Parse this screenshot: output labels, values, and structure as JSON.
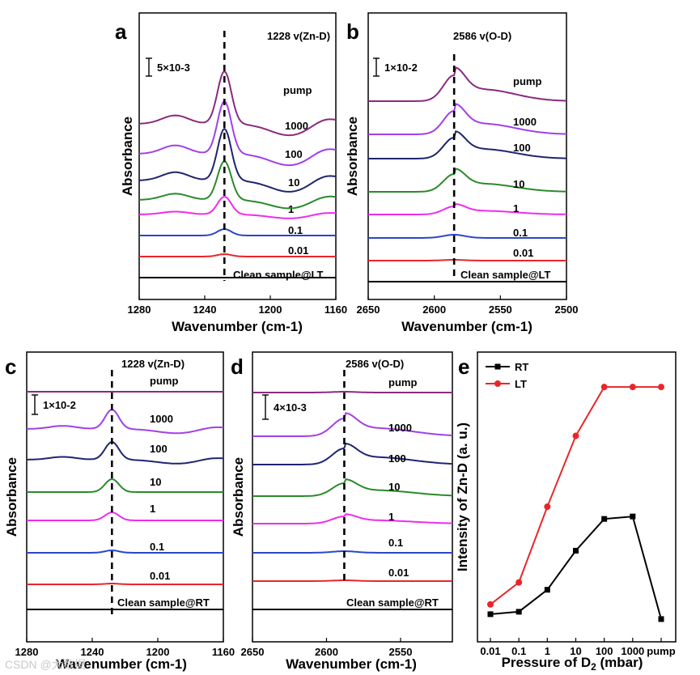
{
  "chart_data": [
    {
      "panel": "a",
      "type": "line",
      "xlabel": "Wavenumber (cm-1)",
      "ylabel": "Absorbance",
      "xlim": [
        1280,
        1160
      ],
      "xticks": [
        "1280",
        "1240",
        "1200",
        "1160"
      ],
      "peak_label": "1228 v(Zn-D)",
      "peak_x": 1228,
      "scale_label": "5×10-3",
      "series": [
        {
          "name": "Clean sample@LT",
          "color": "#000000",
          "baseline": 0,
          "amplitude": 0
        },
        {
          "name": "0.01",
          "color": "#e8262a",
          "baseline": 26,
          "amplitude": 3
        },
        {
          "name": "0.1",
          "color": "#2a46c8",
          "baseline": 52,
          "amplitude": 8
        },
        {
          "name": "1",
          "color": "#ee2cee",
          "baseline": 78,
          "amplitude": 22
        },
        {
          "name": "10",
          "color": "#2b8a2b",
          "baseline": 96,
          "amplitude": 48
        },
        {
          "name": "100",
          "color": "#1f2470",
          "baseline": 120,
          "amplitude": 64
        },
        {
          "name": "1000",
          "color": "#a040e8",
          "baseline": 153,
          "amplitude": 65
        },
        {
          "name": "pump",
          "color": "#8a2a80",
          "baseline": 190,
          "amplitude": 65
        }
      ]
    },
    {
      "panel": "b",
      "type": "line",
      "xlabel": "Wavenumber (cm-1)",
      "ylabel": "Absorbance",
      "xlim": [
        2650,
        2500
      ],
      "xticks": [
        "2650",
        "2600",
        "2550",
        "2500"
      ],
      "peak_label": "2586 v(O-D)",
      "peak_x": 2585,
      "scale_label": "1×10-2",
      "series": [
        {
          "name": "Clean sample@LT",
          "color": "#000000",
          "baseline": 0,
          "amplitude": 0
        },
        {
          "name": "0.01",
          "color": "#e8262a",
          "baseline": 26,
          "amplitude": 1
        },
        {
          "name": "0.1",
          "color": "#2a46c8",
          "baseline": 54,
          "amplitude": 4
        },
        {
          "name": "1",
          "color": "#ee2cee",
          "baseline": 83,
          "amplitude": 10
        },
        {
          "name": "10",
          "color": "#2b8a2b",
          "baseline": 111,
          "amplitude": 22
        },
        {
          "name": "100",
          "color": "#1f2470",
          "baseline": 152,
          "amplitude": 26
        },
        {
          "name": "1000",
          "color": "#a040e8",
          "baseline": 182,
          "amplitude": 29
        },
        {
          "name": "pump",
          "color": "#8a2a80",
          "baseline": 223,
          "amplitude": 32
        }
      ]
    },
    {
      "panel": "c",
      "type": "line",
      "xlabel": "Wavenumber (cm-1)",
      "ylabel": "Absorbance",
      "xlim": [
        1280,
        1160
      ],
      "xticks": [
        "1280",
        "1240",
        "1200",
        "1160"
      ],
      "peak_label": "1228 v(Zn-D)",
      "peak_x": 1228,
      "scale_label": "1×10-2",
      "series": [
        {
          "name": "Clean sample@RT",
          "color": "#000000",
          "baseline": 0,
          "amplitude": 0
        },
        {
          "name": "0.01",
          "color": "#e8262a",
          "baseline": 31,
          "amplitude": 1
        },
        {
          "name": "0.1",
          "color": "#2a46c8",
          "baseline": 70,
          "amplitude": 3
        },
        {
          "name": "1",
          "color": "#ee2cee",
          "baseline": 110,
          "amplitude": 10
        },
        {
          "name": "10",
          "color": "#2b8a2b",
          "baseline": 145,
          "amplitude": 16
        },
        {
          "name": "100",
          "color": "#1f2470",
          "baseline": 185,
          "amplitude": 22
        },
        {
          "name": "1000",
          "color": "#a040e8",
          "baseline": 223,
          "amplitude": 24
        },
        {
          "name": "pump",
          "color": "#8a2a80",
          "baseline": 269,
          "amplitude": 0
        }
      ]
    },
    {
      "panel": "d",
      "type": "line",
      "xlabel": "Wavenumber (cm-1)",
      "ylabel": "Absorbance",
      "xlim": [
        2650,
        2515
      ],
      "xticks": [
        "2650",
        "2600",
        "2550"
      ],
      "peak_label": "2586 v(O-D)",
      "peak_x": 2588,
      "scale_label": "4×10-3",
      "series": [
        {
          "name": "Clean sample@RT",
          "color": "#000000",
          "baseline": 0,
          "amplitude": 0
        },
        {
          "name": "0.01",
          "color": "#e8262a",
          "baseline": 35,
          "amplitude": 1
        },
        {
          "name": "0.1",
          "color": "#2a46c8",
          "baseline": 70,
          "amplitude": 2
        },
        {
          "name": "1",
          "color": "#ee2cee",
          "baseline": 106,
          "amplitude": 9
        },
        {
          "name": "10",
          "color": "#2b8a2b",
          "baseline": 140,
          "amplitude": 16
        },
        {
          "name": "100",
          "color": "#1f2470",
          "baseline": 179,
          "amplitude": 20
        },
        {
          "name": "1000",
          "color": "#a040e8",
          "baseline": 214,
          "amplitude": 22
        },
        {
          "name": "pump",
          "color": "#8a2a80",
          "baseline": 268,
          "amplitude": 1
        }
      ]
    },
    {
      "panel": "e",
      "type": "line",
      "xlabel": "Pressure of D2 (mbar)",
      "ylabel": "Intensity of Zn-D (a. u.)",
      "categories": [
        "0.01",
        "0.1",
        "1",
        "10",
        "100",
        "1000",
        "pump"
      ],
      "ylim": [
        0,
        100
      ],
      "series": [
        {
          "name": "RT",
          "color": "#000000",
          "marker": "square",
          "values": [
            7,
            8,
            17,
            33,
            46,
            47,
            5
          ]
        },
        {
          "name": "LT",
          "color": "#e8262a",
          "marker": "circle",
          "values": [
            11,
            20,
            51,
            80,
            100,
            100,
            100
          ]
        }
      ]
    }
  ],
  "watermark": "CSDN @大数据"
}
